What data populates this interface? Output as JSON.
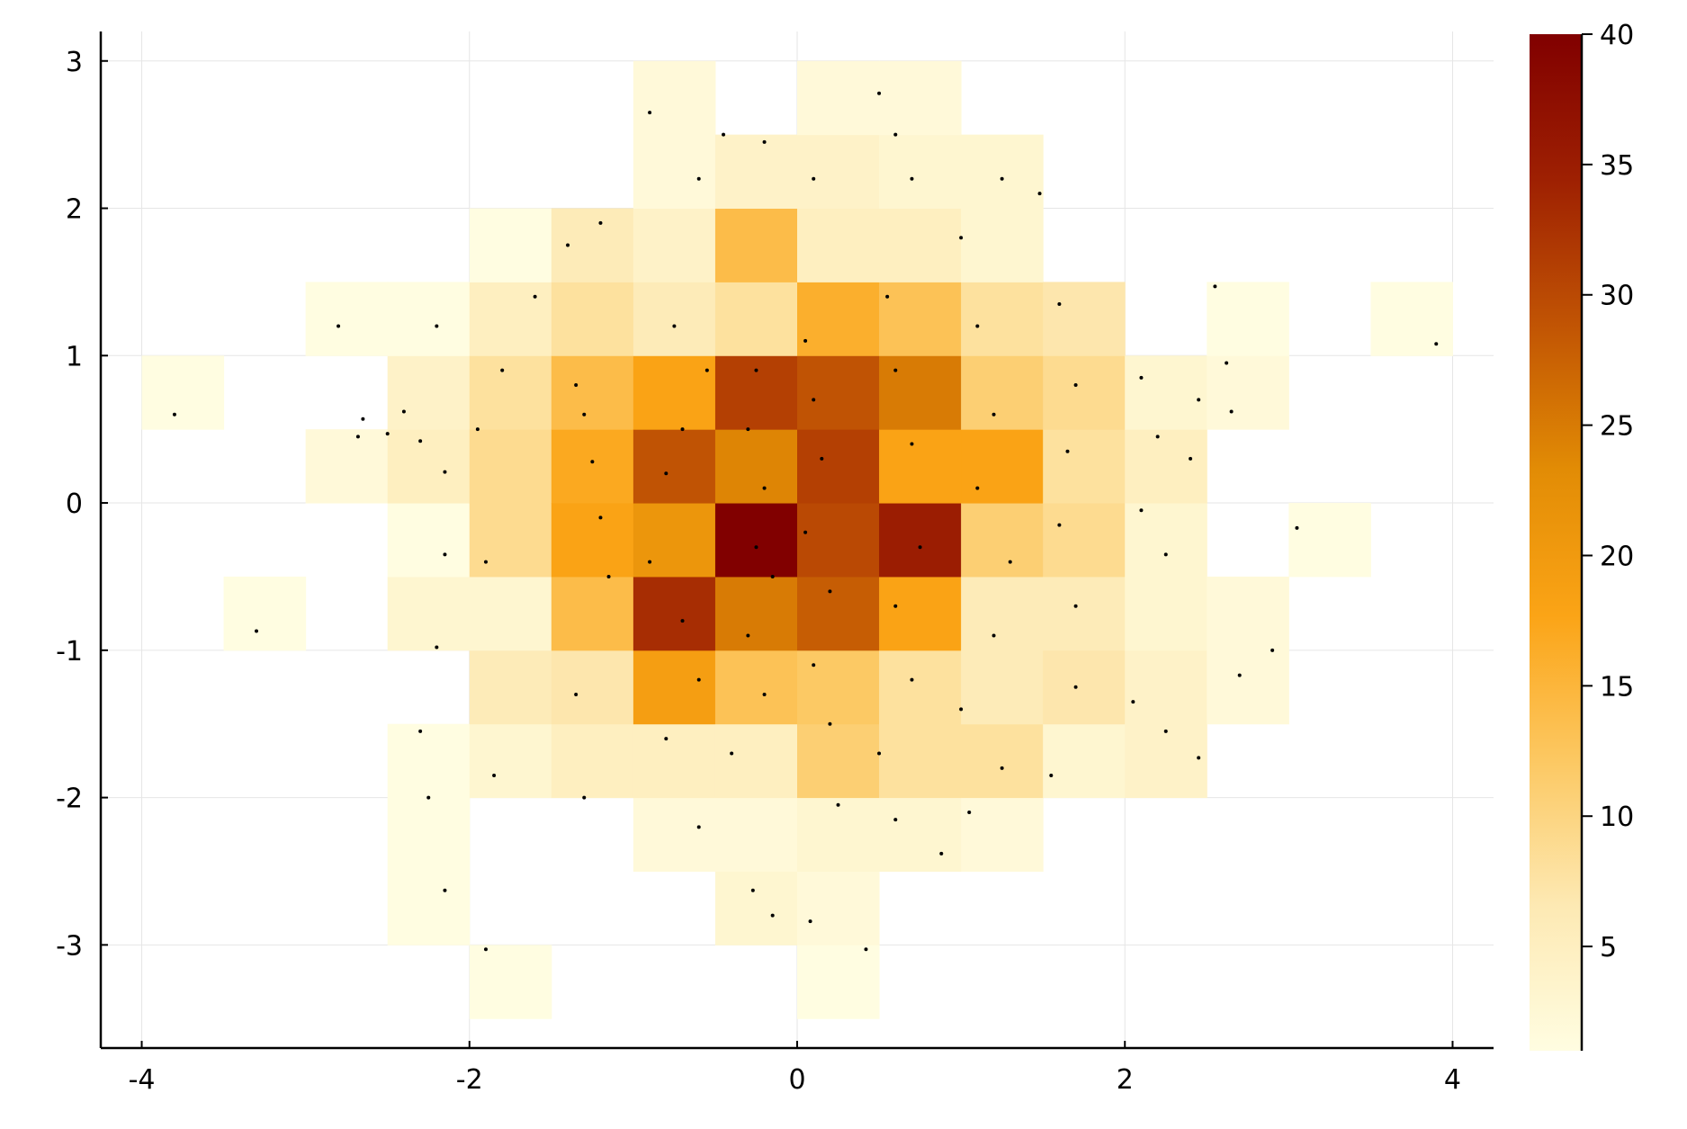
{
  "chart_data": {
    "type": "heatmap",
    "subtype": "2d-histogram-with-scatter-overlay",
    "title": "",
    "xlabel": "",
    "ylabel": "",
    "xlim": [
      -4.25,
      4.25
    ],
    "ylim": [
      -3.7,
      3.2
    ],
    "xticks": [
      -4,
      -2,
      0,
      2,
      4
    ],
    "yticks": [
      -3,
      -2,
      -1,
      0,
      1,
      2,
      3
    ],
    "xtick_labels": [
      "-4",
      "-2",
      "0",
      "2",
      "4"
    ],
    "ytick_labels": [
      "-3",
      "-2",
      "-1",
      "0",
      "1",
      "2",
      "3"
    ],
    "grid": true,
    "bin_width_x": 0.5,
    "bin_height_y": 0.5,
    "colormap": [
      "#fffde1",
      "#fde9b3",
      "#fcc862",
      "#fba416",
      "#e28c05",
      "#c15404",
      "#9e2002",
      "#810000"
    ],
    "colorbar": {
      "min": 1,
      "max": 40,
      "ticks": [
        5,
        10,
        15,
        20,
        25,
        30,
        35,
        40
      ],
      "tick_labels": [
        "5",
        "10",
        "15",
        "20",
        "25",
        "30",
        "35",
        "40"
      ]
    },
    "bins": [
      [
        -4.0,
        0.5,
        1
      ],
      [
        -3.5,
        -1.0,
        1
      ],
      [
        -3.0,
        0.0,
        2
      ],
      [
        -3.0,
        1.0,
        1
      ],
      [
        -2.5,
        -3.0,
        1
      ],
      [
        -2.5,
        -2.5,
        1
      ],
      [
        -2.5,
        -2.0,
        1
      ],
      [
        -2.5,
        -1.0,
        3
      ],
      [
        -2.5,
        -0.5,
        1
      ],
      [
        -2.5,
        0.0,
        5
      ],
      [
        -2.5,
        0.5,
        4
      ],
      [
        -2.5,
        1.0,
        1
      ],
      [
        -2.0,
        -3.5,
        1
      ],
      [
        -2.0,
        -2.0,
        3
      ],
      [
        -2.0,
        -1.5,
        6
      ],
      [
        -2.0,
        -1.0,
        3
      ],
      [
        -2.0,
        -0.5,
        9
      ],
      [
        -2.0,
        0.0,
        9
      ],
      [
        -2.0,
        0.5,
        8
      ],
      [
        -2.0,
        1.0,
        5
      ],
      [
        -2.0,
        1.5,
        1
      ],
      [
        -1.5,
        -2.0,
        5
      ],
      [
        -1.5,
        -1.5,
        7
      ],
      [
        -1.5,
        -1.0,
        14
      ],
      [
        -1.5,
        -0.5,
        18
      ],
      [
        -1.5,
        0.0,
        17
      ],
      [
        -1.5,
        0.5,
        14
      ],
      [
        -1.5,
        1.0,
        8
      ],
      [
        -1.5,
        1.5,
        6
      ],
      [
        -1.0,
        -2.5,
        2
      ],
      [
        -1.0,
        -2.0,
        5
      ],
      [
        -1.0,
        -1.5,
        19
      ],
      [
        -1.0,
        -1.0,
        33
      ],
      [
        -1.0,
        -0.5,
        21
      ],
      [
        -1.0,
        0.0,
        29
      ],
      [
        -1.0,
        0.5,
        18
      ],
      [
        -1.0,
        1.0,
        6
      ],
      [
        -1.0,
        1.5,
        4
      ],
      [
        -1.0,
        2.0,
        2
      ],
      [
        -1.0,
        2.5,
        2
      ],
      [
        -0.5,
        -3.0,
        3
      ],
      [
        -0.5,
        -2.5,
        2
      ],
      [
        -0.5,
        -2.0,
        5
      ],
      [
        -0.5,
        -1.5,
        13
      ],
      [
        -0.5,
        -1.0,
        25
      ],
      [
        -0.5,
        -0.5,
        40
      ],
      [
        -0.5,
        0.0,
        24
      ],
      [
        -0.5,
        0.5,
        31
      ],
      [
        -0.5,
        1.0,
        8
      ],
      [
        -0.5,
        1.5,
        14
      ],
      [
        -0.5,
        2.0,
        4
      ],
      [
        0.0,
        -3.5,
        1
      ],
      [
        0.0,
        -3.0,
        2
      ],
      [
        0.0,
        -2.5,
        3
      ],
      [
        0.0,
        -2.0,
        11
      ],
      [
        0.0,
        -1.5,
        12
      ],
      [
        0.0,
        -1.0,
        28
      ],
      [
        0.0,
        -0.5,
        30
      ],
      [
        0.0,
        0.0,
        31
      ],
      [
        0.0,
        0.5,
        29
      ],
      [
        0.0,
        1.0,
        16
      ],
      [
        0.0,
        1.5,
        5
      ],
      [
        0.0,
        2.0,
        4
      ],
      [
        0.0,
        2.5,
        2
      ],
      [
        0.5,
        -2.5,
        3
      ],
      [
        0.5,
        -2.0,
        8
      ],
      [
        0.5,
        -1.5,
        8
      ],
      [
        0.5,
        -1.0,
        18
      ],
      [
        0.5,
        -0.5,
        35
      ],
      [
        0.5,
        0.0,
        18
      ],
      [
        0.5,
        0.5,
        25
      ],
      [
        0.5,
        1.0,
        13
      ],
      [
        0.5,
        1.5,
        5
      ],
      [
        0.5,
        2.0,
        3
      ],
      [
        0.5,
        2.5,
        2
      ],
      [
        1.0,
        -2.5,
        2
      ],
      [
        1.0,
        -2.0,
        8
      ],
      [
        1.0,
        -1.5,
        6
      ],
      [
        1.0,
        -1.0,
        6
      ],
      [
        1.0,
        -0.5,
        11
      ],
      [
        1.0,
        0.0,
        18
      ],
      [
        1.0,
        0.5,
        11
      ],
      [
        1.0,
        1.0,
        8
      ],
      [
        1.0,
        1.5,
        3
      ],
      [
        1.0,
        2.0,
        3
      ],
      [
        1.5,
        -2.0,
        3
      ],
      [
        1.5,
        -1.5,
        7
      ],
      [
        1.5,
        -1.0,
        6
      ],
      [
        1.5,
        -0.5,
        9
      ],
      [
        1.5,
        0.0,
        8
      ],
      [
        1.5,
        0.5,
        9
      ],
      [
        1.5,
        1.0,
        7
      ],
      [
        2.0,
        -2.0,
        4
      ],
      [
        2.0,
        -1.5,
        4
      ],
      [
        2.0,
        -1.0,
        3
      ],
      [
        2.0,
        -0.5,
        3
      ],
      [
        2.0,
        0.0,
        5
      ],
      [
        2.0,
        0.5,
        3
      ],
      [
        2.5,
        -1.5,
        2
      ],
      [
        2.5,
        -1.0,
        2
      ],
      [
        2.5,
        0.5,
        2
      ],
      [
        2.5,
        1.0,
        1
      ],
      [
        3.0,
        -0.5,
        1
      ],
      [
        3.5,
        1.0,
        1
      ]
    ],
    "scatter_points": [
      [
        -3.8,
        0.6
      ],
      [
        -3.3,
        -0.87
      ],
      [
        -2.8,
        1.2
      ],
      [
        -2.68,
        0.45
      ],
      [
        -2.65,
        0.57
      ],
      [
        -2.5,
        0.47
      ],
      [
        -2.4,
        0.62
      ],
      [
        -2.3,
        0.42
      ],
      [
        -2.2,
        1.2
      ],
      [
        -2.15,
        0.21
      ],
      [
        -2.2,
        -0.98
      ],
      [
        -2.15,
        -0.35
      ],
      [
        -2.3,
        -1.55
      ],
      [
        -2.25,
        -2.0
      ],
      [
        -2.15,
        -2.63
      ],
      [
        -1.9,
        -3.03
      ],
      [
        -1.95,
        0.5
      ],
      [
        -1.9,
        -0.4
      ],
      [
        -1.8,
        0.9
      ],
      [
        -1.85,
        -1.85
      ],
      [
        -1.6,
        1.4
      ],
      [
        -1.4,
        1.75
      ],
      [
        -1.2,
        1.9
      ],
      [
        -1.3,
        -2.0
      ],
      [
        -1.35,
        0.8
      ],
      [
        -1.3,
        0.6
      ],
      [
        -1.25,
        0.28
      ],
      [
        -1.2,
        -0.1
      ],
      [
        -1.15,
        -0.5
      ],
      [
        -1.35,
        -1.3
      ],
      [
        -0.9,
        2.65
      ],
      [
        -0.75,
        1.2
      ],
      [
        -0.6,
        2.2
      ],
      [
        -0.45,
        2.5
      ],
      [
        -0.55,
        0.9
      ],
      [
        -0.7,
        0.5
      ],
      [
        -0.8,
        0.2
      ],
      [
        -0.9,
        -0.4
      ],
      [
        -0.7,
        -0.8
      ],
      [
        -0.6,
        -1.2
      ],
      [
        -0.8,
        -1.6
      ],
      [
        -0.6,
        -2.2
      ],
      [
        -0.2,
        2.45
      ],
      [
        -0.25,
        0.9
      ],
      [
        -0.3,
        0.5
      ],
      [
        -0.2,
        0.1
      ],
      [
        -0.25,
        -0.3
      ],
      [
        -0.15,
        -0.5
      ],
      [
        -0.3,
        -0.9
      ],
      [
        -0.2,
        -1.3
      ],
      [
        -0.4,
        -1.7
      ],
      [
        -0.27,
        -2.63
      ],
      [
        -0.15,
        -2.8
      ],
      [
        0.1,
        2.2
      ],
      [
        0.05,
        1.1
      ],
      [
        0.1,
        0.7
      ],
      [
        0.15,
        0.3
      ],
      [
        0.05,
        -0.2
      ],
      [
        0.2,
        -0.6
      ],
      [
        0.1,
        -1.1
      ],
      [
        0.2,
        -1.5
      ],
      [
        0.25,
        -2.05
      ],
      [
        0.08,
        -2.84
      ],
      [
        0.5,
        2.78
      ],
      [
        0.6,
        2.5
      ],
      [
        0.7,
        2.2
      ],
      [
        0.55,
        1.4
      ],
      [
        0.6,
        0.9
      ],
      [
        0.7,
        0.4
      ],
      [
        0.75,
        -0.3
      ],
      [
        0.6,
        -0.7
      ],
      [
        0.7,
        -1.2
      ],
      [
        0.5,
        -1.7
      ],
      [
        0.6,
        -2.15
      ],
      [
        0.42,
        -3.03
      ],
      [
        1.0,
        1.8
      ],
      [
        1.1,
        1.2
      ],
      [
        1.2,
        0.6
      ],
      [
        1.1,
        0.1
      ],
      [
        1.3,
        -0.4
      ],
      [
        1.2,
        -0.9
      ],
      [
        1.0,
        -1.4
      ],
      [
        1.25,
        -1.8
      ],
      [
        0.88,
        -2.38
      ],
      [
        1.05,
        -2.1
      ],
      [
        1.25,
        2.2
      ],
      [
        1.48,
        2.1
      ],
      [
        1.6,
        1.35
      ],
      [
        1.7,
        0.8
      ],
      [
        1.65,
        0.35
      ],
      [
        1.6,
        -0.15
      ],
      [
        1.7,
        -0.7
      ],
      [
        1.7,
        -1.25
      ],
      [
        1.55,
        -1.85
      ],
      [
        2.1,
        0.85
      ],
      [
        2.2,
        0.45
      ],
      [
        2.1,
        -0.05
      ],
      [
        2.25,
        -0.35
      ],
      [
        2.05,
        -1.35
      ],
      [
        2.25,
        -1.55
      ],
      [
        2.45,
        -1.73
      ],
      [
        2.4,
        0.3
      ],
      [
        2.45,
        0.7
      ],
      [
        2.55,
        1.47
      ],
      [
        2.62,
        0.95
      ],
      [
        2.65,
        0.62
      ],
      [
        2.7,
        -1.17
      ],
      [
        2.9,
        -1.0
      ],
      [
        3.05,
        -0.17
      ],
      [
        3.9,
        1.08
      ]
    ]
  }
}
